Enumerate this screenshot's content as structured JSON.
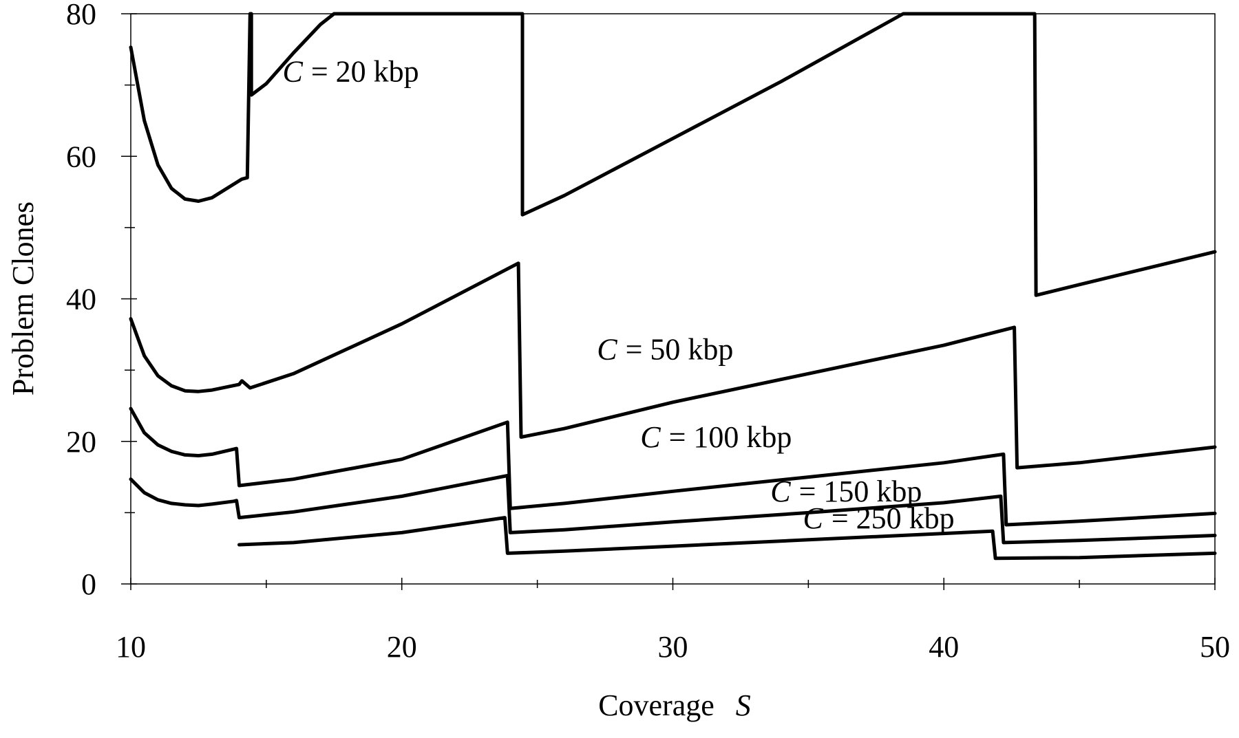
{
  "chart_data": {
    "type": "line",
    "xlabel": "Coverage",
    "xlabel_symbol": "S",
    "ylabel": "Problem Clones",
    "xlim": [
      10,
      50
    ],
    "ylim": [
      0,
      80
    ],
    "x_ticks": [
      10,
      20,
      30,
      40,
      50
    ],
    "y_ticks": [
      0,
      20,
      40,
      60,
      80
    ],
    "x_minor_ticks": [
      15,
      25,
      35,
      45
    ],
    "y_minor_ticks": [
      10,
      30,
      50,
      70
    ],
    "grid": false,
    "series": [
      {
        "name": "C = 20 kbp",
        "label_symbol": "C",
        "label_rest": "= 20 kbp",
        "label_at": [
          15.6,
          70.5
        ],
        "label_size": 44,
        "points": [
          [
            10,
            75.3
          ],
          [
            10.5,
            65
          ],
          [
            11,
            58.8
          ],
          [
            11.5,
            55.5
          ],
          [
            12,
            54
          ],
          [
            12.5,
            53.7
          ],
          [
            13,
            54.2
          ],
          [
            14.1,
            56.8
          ],
          [
            14.3,
            57
          ],
          [
            14.4,
            80
          ],
          [
            14.45,
            80
          ],
          [
            14.45,
            68.6
          ],
          [
            15,
            70.2
          ],
          [
            16,
            74.5
          ],
          [
            17,
            78.5
          ],
          [
            17.5,
            80
          ],
          [
            24.4,
            80
          ],
          [
            24.45,
            80
          ],
          [
            24.45,
            51.8
          ],
          [
            26,
            54.5
          ],
          [
            30,
            62.5
          ],
          [
            34,
            70.5
          ],
          [
            38.5,
            80
          ],
          [
            43.3,
            80
          ],
          [
            43.35,
            80
          ],
          [
            43.4,
            40.5
          ],
          [
            45,
            42
          ],
          [
            50,
            46.6
          ]
        ]
      },
      {
        "name": "C = 50 kbp",
        "label_symbol": "C",
        "label_rest": "= 50 kbp",
        "label_at": [
          27.2,
          31.5
        ],
        "label_size": 44,
        "points": [
          [
            10,
            37.2
          ],
          [
            10.5,
            32
          ],
          [
            11,
            29.2
          ],
          [
            11.5,
            27.8
          ],
          [
            12,
            27.1
          ],
          [
            12.5,
            27
          ],
          [
            13,
            27.2
          ],
          [
            14,
            28
          ],
          [
            14.1,
            28.5
          ],
          [
            14.4,
            27.5
          ],
          [
            16,
            29.5
          ],
          [
            20,
            36.5
          ],
          [
            24.3,
            45
          ],
          [
            24.4,
            20.6
          ],
          [
            26,
            21.8
          ],
          [
            30,
            25.5
          ],
          [
            35,
            29.5
          ],
          [
            40,
            33.5
          ],
          [
            42.6,
            36
          ],
          [
            42.7,
            16.3
          ],
          [
            45,
            17
          ],
          [
            50,
            19.2
          ]
        ]
      },
      {
        "name": "C = 100 kbp",
        "label_symbol": "C",
        "label_rest": "= 100 kbp",
        "label_at": [
          28.8,
          19.2
        ],
        "label_size": 44,
        "points": [
          [
            10,
            24.6
          ],
          [
            10.5,
            21.2
          ],
          [
            11,
            19.5
          ],
          [
            11.5,
            18.6
          ],
          [
            12,
            18.1
          ],
          [
            12.5,
            18
          ],
          [
            13,
            18.2
          ],
          [
            13.8,
            18.9
          ],
          [
            13.9,
            19
          ],
          [
            14,
            13.8
          ],
          [
            16,
            14.7
          ],
          [
            20,
            17.5
          ],
          [
            23.9,
            22.7
          ],
          [
            24,
            10.6
          ],
          [
            26,
            11.3
          ],
          [
            30,
            13
          ],
          [
            35,
            15
          ],
          [
            40,
            17
          ],
          [
            42.2,
            18.2
          ],
          [
            42.3,
            8.3
          ],
          [
            45,
            8.8
          ],
          [
            50,
            9.9
          ]
        ]
      },
      {
        "name": "C = 150 kbp",
        "label_symbol": "C",
        "label_rest": "= 150 kbp",
        "label_at": [
          33.6,
          11.6
        ],
        "label_size": 40,
        "points": [
          [
            10,
            14.7
          ],
          [
            10.5,
            12.8
          ],
          [
            11,
            11.8
          ],
          [
            11.5,
            11.3
          ],
          [
            12,
            11.1
          ],
          [
            12.5,
            11
          ],
          [
            13,
            11.2
          ],
          [
            13.8,
            11.6
          ],
          [
            13.9,
            11.7
          ],
          [
            14,
            9.3
          ],
          [
            16,
            10.1
          ],
          [
            20,
            12.3
          ],
          [
            23.9,
            15.2
          ],
          [
            24,
            7.2
          ],
          [
            26,
            7.6
          ],
          [
            30,
            8.7
          ],
          [
            35,
            10
          ],
          [
            40,
            11.4
          ],
          [
            42.1,
            12.3
          ],
          [
            42.2,
            5.8
          ],
          [
            45,
            6.1
          ],
          [
            50,
            6.8
          ]
        ]
      },
      {
        "name": "C = 250 kbp",
        "label_symbol": "C",
        "label_rest": "= 250 kbp",
        "label_at": [
          34.8,
          7.8
        ],
        "label_size": 32,
        "points": [
          [
            14,
            5.5
          ],
          [
            16,
            5.8
          ],
          [
            20,
            7.2
          ],
          [
            23.8,
            9.3
          ],
          [
            23.9,
            4.3
          ],
          [
            26,
            4.6
          ],
          [
            30,
            5.3
          ],
          [
            35,
            6.2
          ],
          [
            41.8,
            7.4
          ],
          [
            41.9,
            3.6
          ],
          [
            45,
            3.7
          ],
          [
            50,
            4.3
          ]
        ]
      }
    ]
  }
}
